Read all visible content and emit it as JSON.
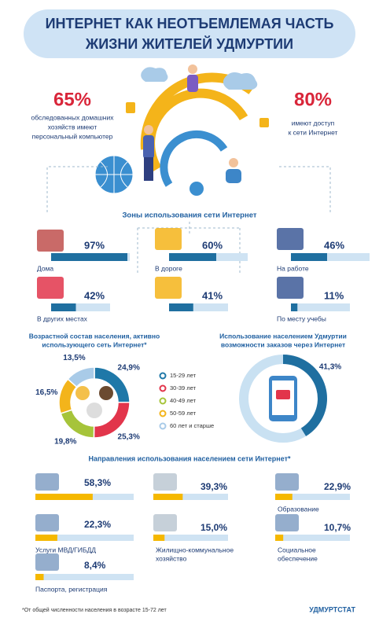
{
  "title": [
    "ИНТЕРНЕТ КАК НЕОТЪЕМЛЕМАЯ ЧАСТЬ",
    "ЖИЗНИ ЖИТЕЛЕЙ УДМУРТИИ"
  ],
  "stats": [
    {
      "value": 65,
      "label": "65%",
      "text": [
        "обследованных домашних",
        "хозяйств имеют",
        "персональный компьютер"
      ]
    },
    {
      "value": 80,
      "label": "80%",
      "text": [
        "имеют доступ",
        "к сети Интернет"
      ]
    }
  ],
  "zones": {
    "title": "Зоны использования сети Интернет",
    "items": [
      {
        "name": "Дома",
        "value": 97,
        "label": "97%"
      },
      {
        "name": "В дороге",
        "value": 60,
        "label": "60%"
      },
      {
        "name": "На работе",
        "value": 46,
        "label": "46%"
      },
      {
        "name": "В других местах",
        "value": 42,
        "label": "42%"
      },
      {
        "name": null,
        "value": 41,
        "label": "41%"
      },
      {
        "name": "По месту учебы",
        "value": 11,
        "label": "11%"
      }
    ]
  },
  "age": {
    "title": [
      "Возрастной состав населения, активно",
      "использующего сеть Интернет*"
    ],
    "segments": [
      {
        "name": "15-29 лет",
        "value": 24.9,
        "label": "24,9%",
        "color": "#1f78a8"
      },
      {
        "name": "30-39 лет",
        "value": 25.3,
        "label": "25,3%",
        "color": "#e2354b"
      },
      {
        "name": "40-49 лет",
        "value": 19.8,
        "label": "19,8%",
        "color": "#a6c43a"
      },
      {
        "name": "50-59 лет",
        "value": 16.5,
        "label": "16,5%",
        "color": "#f3b41b"
      },
      {
        "name": "60 лет и старше",
        "value": 13.5,
        "label": "13,5%",
        "color": "#a9cbe8"
      }
    ]
  },
  "orders": {
    "title": [
      "Использование населением Удмуртии",
      "возможности заказов через Интернет"
    ],
    "value": 41.3,
    "label": "41,3%"
  },
  "directions": {
    "title": "Направления использования населением сети Интернет*",
    "items": [
      {
        "name": [],
        "value": 58.3,
        "label": "58,3%"
      },
      {
        "name": [],
        "value": 39.3,
        "label": "39,3%"
      },
      {
        "name": [
          "Образование"
        ],
        "value": 22.9,
        "label": "22,9%"
      },
      {
        "name": [
          "Услуги МВД/ГИБДД"
        ],
        "value": 22.3,
        "label": "22,3%"
      },
      {
        "name": [
          "Жилищно-коммунальное",
          "хозяйство"
        ],
        "value": 15.0,
        "label": "15,0%"
      },
      {
        "name": [
          "Социальное",
          "обеспечение"
        ],
        "value": 10.7,
        "label": "10,7%"
      },
      {
        "name": [
          "Паспорта, регистрация"
        ],
        "value": 8.4,
        "label": "8,4%"
      }
    ]
  },
  "footnote": "*От общей численности населения в возрасте 15-72 лет",
  "brand": "УДМУРТСТАТ"
}
